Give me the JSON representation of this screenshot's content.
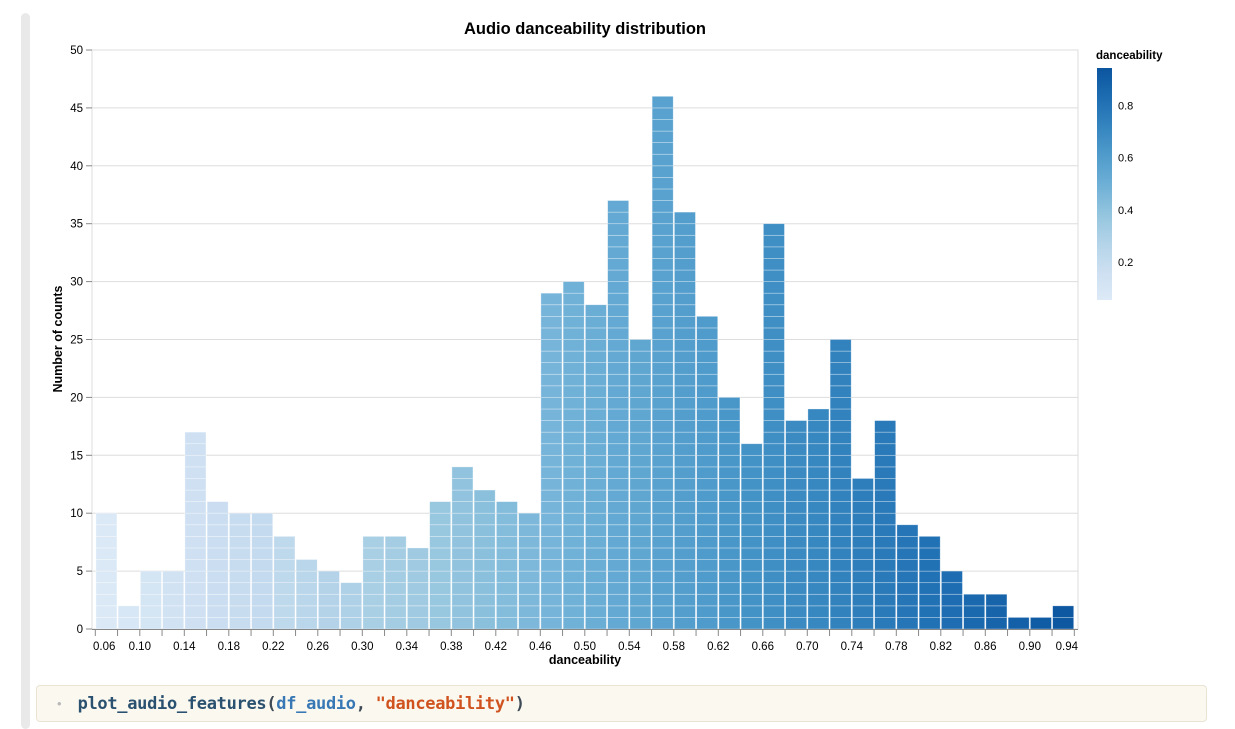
{
  "chart_data": {
    "type": "bar",
    "subtype": "histogram",
    "title": "Audio danceability distribution",
    "xlabel": "danceability",
    "ylabel": "Number of counts",
    "bin_start": 0.06,
    "bin_step": 0.02,
    "counts": [
      10,
      2,
      5,
      5,
      17,
      11,
      10,
      10,
      8,
      6,
      5,
      4,
      8,
      8,
      7,
      11,
      14,
      12,
      11,
      10,
      29,
      30,
      28,
      37,
      25,
      46,
      36,
      27,
      20,
      16,
      35,
      18,
      19,
      25,
      13,
      18,
      9,
      8,
      5,
      3,
      3,
      1,
      1,
      2
    ],
    "ylim": [
      0,
      50
    ],
    "ytick_step": 5,
    "x_tick_labels": [
      "0.06",
      "0.10",
      "0.14",
      "0.18",
      "0.22",
      "0.26",
      "0.30",
      "0.34",
      "0.38",
      "0.42",
      "0.46",
      "0.50",
      "0.54",
      "0.58",
      "0.62",
      "0.66",
      "0.70",
      "0.74",
      "0.78",
      "0.82",
      "0.86",
      "0.90",
      "0.94"
    ],
    "x_minor_tick_step": 0.02,
    "grid": true,
    "colors": {
      "scheme_name": "blues",
      "scheme_stops": [
        "#f7fbff",
        "#deebf7",
        "#c6dbef",
        "#9ecae1",
        "#6baed6",
        "#4292c6",
        "#2171b5",
        "#08519c",
        "#08306b"
      ],
      "grid": "#dddddd",
      "view_border": "#dddddd",
      "axis_line": "#888888",
      "label": "#000000"
    },
    "color_domain": [
      0.055,
      0.943
    ],
    "legend": {
      "title": "danceability",
      "position": "right",
      "orientation": "vertical-gradient",
      "tick_labels": [
        "0.8",
        "0.6",
        "0.4",
        "0.2"
      ]
    }
  },
  "code_cell": {
    "bullet": "•",
    "tokens": [
      {
        "text": "plot_audio_features",
        "type": "fn"
      },
      {
        "text": "(",
        "type": "p"
      },
      {
        "text": "df_audio",
        "type": "var"
      },
      {
        "text": ",",
        "type": "p"
      },
      {
        "text": " \"danceability\"",
        "type": "str2"
      },
      {
        "text": ")",
        "type": "p"
      }
    ],
    "token_note": "string token rendered orange including quotes"
  }
}
